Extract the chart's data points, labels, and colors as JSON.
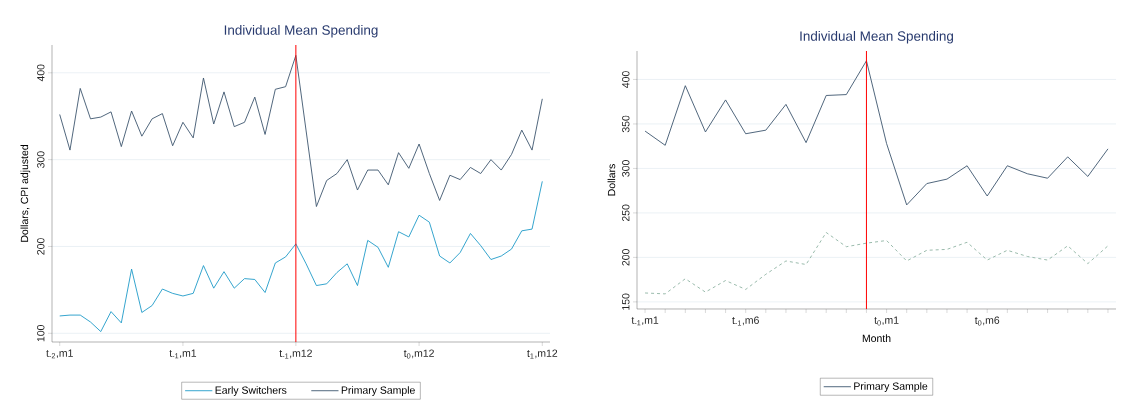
{
  "chart_data": [
    {
      "type": "line",
      "title": "Individual Mean Spending",
      "ylabel": "Dollars, CPI adjusted",
      "categories": [
        "t$_{-2}$,m1",
        null,
        null,
        null,
        null,
        null,
        null,
        null,
        null,
        null,
        null,
        null,
        "t$_{-1}$,m1",
        null,
        null,
        null,
        null,
        null,
        null,
        null,
        null,
        null,
        null,
        "t$_{-1}$,m12",
        null,
        null,
        null,
        null,
        null,
        null,
        null,
        null,
        null,
        null,
        null,
        "t$_{0}$,m12",
        null,
        null,
        null,
        null,
        null,
        null,
        null,
        null,
        null,
        null,
        null,
        "t$_{1}$,m12"
      ],
      "series": [
        {
          "name": "Early Switchers",
          "color": "#1f9bc8",
          "values": [
            120,
            121,
            121,
            113,
            102,
            125,
            112,
            174,
            124,
            132,
            151,
            146,
            143,
            146,
            178,
            152,
            171,
            152,
            163,
            162,
            147,
            181,
            188,
            203,
            180,
            155,
            157,
            170,
            180,
            155,
            207,
            199,
            176,
            217,
            211,
            236,
            228,
            189,
            181,
            193,
            215,
            201,
            185,
            189,
            197,
            218,
            220,
            275
          ]
        },
        {
          "name": "Primary Sample",
          "color": "#3d566e",
          "values": [
            352,
            311,
            382,
            347,
            349,
            355,
            315,
            356,
            327,
            347,
            353,
            316,
            343,
            325,
            394,
            341,
            378,
            338,
            343,
            372,
            329,
            381,
            384,
            420,
            333,
            246,
            276,
            284,
            300,
            265,
            288,
            288,
            271,
            308,
            290,
            318,
            284,
            253,
            282,
            277,
            291,
            284,
            300,
            288,
            306,
            334,
            311,
            370
          ]
        }
      ],
      "ylim": [
        90,
        432
      ],
      "yticks": [
        100,
        200,
        300,
        400
      ],
      "ref_lines": [
        {
          "axis": "x",
          "value": "t$_{-1}$,m12",
          "color": "#ff0000"
        }
      ],
      "grid": "y",
      "legend": "bottom",
      "marker": "none",
      "line_style": "solid"
    },
    {
      "type": "line",
      "title": "Individual Mean Spending",
      "xlabel": "Month",
      "ylabel": "Dollars",
      "categories": [
        "t$_{-1}$,m1",
        null,
        null,
        null,
        null,
        "t$_{-1}$,m6",
        null,
        null,
        null,
        null,
        null,
        null,
        "t$_{0}$,m1",
        null,
        null,
        null,
        null,
        "t$_{0}$,m6",
        null,
        null,
        null,
        null,
        null,
        null
      ],
      "series": [
        {
          "name": "Primary Sample",
          "color": "#3d566e",
          "values": [
            342,
            326,
            393,
            341,
            377,
            339,
            343,
            372,
            329,
            382,
            383,
            421,
            328,
            259,
            283,
            288,
            303,
            269,
            303,
            294,
            289,
            313,
            291,
            322
          ]
        },
        {
          "color": "#8fb3a3",
          "line_style": "dashed",
          "values": [
            160,
            159,
            176,
            161,
            174,
            164,
            181,
            196,
            192,
            228,
            212,
            216,
            219,
            196,
            208,
            209,
            217,
            197,
            208,
            201,
            197,
            213,
            193,
            213
          ]
        }
      ],
      "ylim": [
        142,
        432
      ],
      "yticks": [
        150,
        200,
        250,
        300,
        350,
        400
      ],
      "grid": "y",
      "legend": "bottom",
      "marker": "none",
      "line_style": "solid"
    }
  ]
}
